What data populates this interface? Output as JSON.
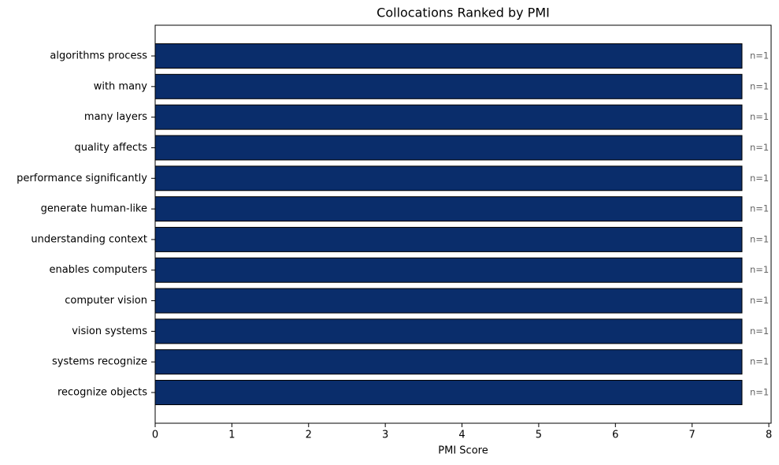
{
  "chart_data": {
    "type": "barh",
    "title": "Collocations Ranked by PMI",
    "x_label": "PMI Score",
    "categories": [
      "algorithms process",
      "with many",
      "many layers",
      "quality affects",
      "performance significantly",
      "generate human-like",
      "understanding context",
      "enables computers",
      "computer vision",
      "vision systems",
      "systems recognize",
      "recognize objects"
    ],
    "values": [
      7.65,
      7.65,
      7.65,
      7.65,
      7.65,
      7.65,
      7.65,
      7.65,
      7.65,
      7.65,
      7.65,
      7.65
    ],
    "annotations": [
      "n=1",
      "n=1",
      "n=1",
      "n=1",
      "n=1",
      "n=1",
      "n=1",
      "n=1",
      "n=1",
      "n=1",
      "n=1",
      "n=1"
    ],
    "color": "#0a2d6b",
    "edge_color": "#000000",
    "xlim": [
      0,
      8.03
    ],
    "xticks": [
      0,
      1,
      2,
      3,
      4,
      5,
      6,
      7,
      8
    ],
    "grid": false
  }
}
